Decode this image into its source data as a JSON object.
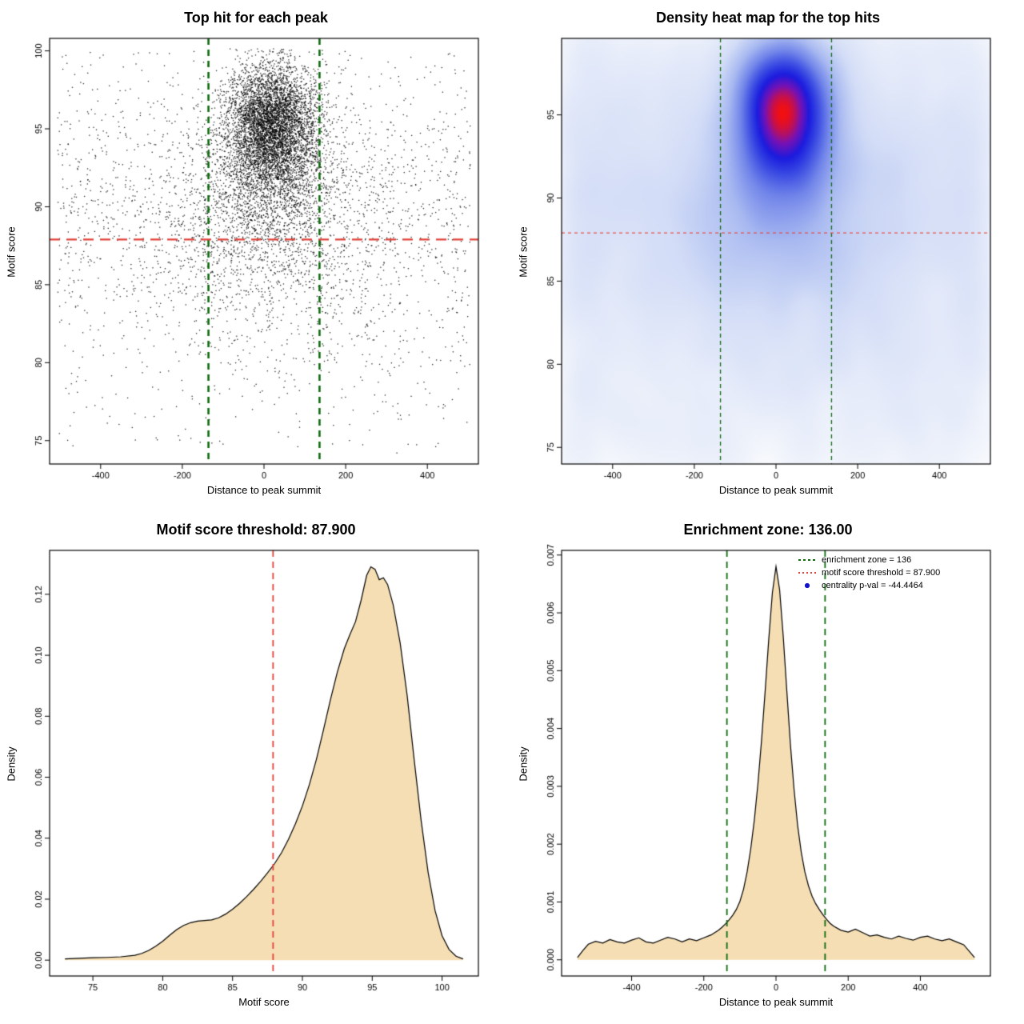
{
  "chart_data": [
    {
      "id": "top-hit-scatter",
      "type": "scatter",
      "title": "Top hit for each peak",
      "xlabel": "Distance to peak summit",
      "ylabel": "Motif score",
      "xlim": [
        -525,
        525
      ],
      "ylim": [
        73.5,
        100.8
      ],
      "xticks": [
        -400,
        -200,
        0,
        200,
        400
      ],
      "xtick_labels": [
        "-400",
        "-200",
        "0",
        "200",
        "400"
      ],
      "yticks": [
        75,
        80,
        85,
        90,
        95,
        100
      ],
      "ytick_labels": [
        "75",
        "80",
        "85",
        "90",
        "95",
        "100"
      ],
      "grid": false,
      "point_color": "#000000",
      "point_size": 1.3,
      "vlines": [
        {
          "x": -136,
          "color": "#0e6b0e",
          "dash": [
            8,
            6
          ],
          "width": 2.6
        },
        {
          "x": 136,
          "color": "#0e6b0e",
          "dash": [
            8,
            6
          ],
          "width": 2.6
        }
      ],
      "hlines": [
        {
          "y": 87.9,
          "color": "#e0433b",
          "dash": [
            13,
            8
          ],
          "width": 2.2
        }
      ],
      "points_spec": {
        "seed": 1337,
        "x_clip": [
          -505,
          505
        ],
        "y_clip": [
          73.8,
          100.2
        ],
        "clusters": [
          {
            "type": "gauss",
            "n": 5200,
            "x_mean": 20,
            "x_sd": 55,
            "y_mean": 95.2,
            "y_sd": 2.0
          },
          {
            "type": "gauss",
            "n": 1600,
            "x_mean": 10,
            "x_sd": 95,
            "y_mean": 91.2,
            "y_sd": 2.6
          },
          {
            "type": "gauss",
            "n": 900,
            "x_mean": 0,
            "x_sd": 170,
            "y_mean": 87.5,
            "y_sd": 3.2
          },
          {
            "type": "uniform_x_gauss_y",
            "n": 1500,
            "x_min": -505,
            "x_max": 505,
            "y_mean": 89.5,
            "y_sd": 5.2
          },
          {
            "type": "uniform",
            "n": 500,
            "x_min": -505,
            "x_max": 505,
            "y_min": 74.5,
            "y_max": 100
          }
        ]
      }
    },
    {
      "id": "density-heatmap",
      "type": "heatmap",
      "title": "Density heat map for the top hits",
      "xlabel": "Distance to peak summit",
      "ylabel": "Motif score",
      "xlim": [
        -525,
        525
      ],
      "ylim": [
        74,
        99.6
      ],
      "xticks": [
        -400,
        -200,
        0,
        200,
        400
      ],
      "xtick_labels": [
        "-400",
        "-200",
        "0",
        "200",
        "400"
      ],
      "yticks": [
        75,
        80,
        85,
        90,
        95
      ],
      "ytick_labels": [
        "75",
        "80",
        "85",
        "90",
        "95"
      ],
      "points_source": "top-hit-scatter",
      "kde": {
        "grid_nx": 150,
        "grid_ny": 150,
        "sigma_bins_x": 4.0,
        "sigma_bins_y": 6.4,
        "intensity_power": 0.3
      },
      "colormap": [
        [
          0.0,
          "#ffffff"
        ],
        [
          0.15,
          "#eef2fb"
        ],
        [
          0.35,
          "#d3ddf7"
        ],
        [
          0.52,
          "#a9baf1"
        ],
        [
          0.66,
          "#7286ea"
        ],
        [
          0.78,
          "#3747e2"
        ],
        [
          0.86,
          "#1b1bdf"
        ],
        [
          0.93,
          "#7712b4"
        ],
        [
          1.0,
          "#f40f0f"
        ]
      ],
      "vlines": [
        {
          "x": -136,
          "color": "#0e6b0e",
          "dash": [
            5,
            4
          ],
          "width": 1.3
        },
        {
          "x": 136,
          "color": "#0e6b0e",
          "dash": [
            5,
            4
          ],
          "width": 1.3
        }
      ],
      "hlines": [
        {
          "y": 87.9,
          "color": "#e0433b",
          "dash": [
            4,
            4
          ],
          "width": 1.1
        }
      ]
    },
    {
      "id": "motif-score-density",
      "type": "density",
      "title": "Motif score threshold: 87.900",
      "xlabel": "Motif score",
      "ylabel": "Density",
      "xlim": [
        71.9,
        102.6
      ],
      "ylim": [
        -0.0052,
        0.1344
      ],
      "xticks": [
        75,
        80,
        85,
        90,
        95,
        100
      ],
      "xtick_labels": [
        "75",
        "80",
        "85",
        "90",
        "95",
        "100"
      ],
      "yticks": [
        0,
        0.02,
        0.04,
        0.06,
        0.08,
        0.1,
        0.12
      ],
      "ytick_labels": [
        "0.00",
        "0.02",
        "0.04",
        "0.06",
        "0.08",
        "0.10",
        "0.12"
      ],
      "fill": "#f5deb3",
      "stroke": "#000000",
      "vlines": [
        {
          "x": 87.9,
          "color": "#e0433b",
          "dash": [
            8,
            6
          ],
          "width": 1.8
        }
      ],
      "curve": {
        "x": [
          73,
          74,
          75,
          76,
          77,
          78,
          78.5,
          79,
          79.5,
          80,
          80.5,
          81,
          81.5,
          82,
          82.5,
          83,
          83.5,
          84,
          84.5,
          85,
          85.5,
          86,
          86.5,
          87,
          87.5,
          88,
          88.5,
          89,
          89.5,
          90,
          90.5,
          91,
          91.5,
          92,
          92.5,
          93,
          93.4,
          93.8,
          94.2,
          94.6,
          94.9,
          95.2,
          95.5,
          95.8,
          96.1,
          96.5,
          97,
          97.5,
          98,
          98.5,
          99,
          99.5,
          100,
          100.5,
          101,
          101.5
        ],
        "y": [
          0.0004,
          0.0006,
          0.0008,
          0.0009,
          0.0011,
          0.0016,
          0.0022,
          0.0032,
          0.0046,
          0.0062,
          0.0082,
          0.01,
          0.0114,
          0.0123,
          0.0128,
          0.013,
          0.0132,
          0.0139,
          0.0151,
          0.0167,
          0.0186,
          0.0208,
          0.0232,
          0.0258,
          0.0286,
          0.0316,
          0.0352,
          0.0396,
          0.0447,
          0.0506,
          0.0576,
          0.0658,
          0.0754,
          0.0853,
          0.0945,
          0.1022,
          0.1068,
          0.111,
          0.118,
          0.1262,
          0.129,
          0.1282,
          0.1248,
          0.1254,
          0.1232,
          0.1165,
          0.104,
          0.0868,
          0.0658,
          0.0458,
          0.0288,
          0.0162,
          0.008,
          0.0035,
          0.0013,
          0.0004
        ]
      }
    },
    {
      "id": "distance-density",
      "type": "density",
      "title": "Enrichment zone: 136.00",
      "xlabel": "Distance to peak summit",
      "ylabel": "Density",
      "xlim": [
        -594,
        594
      ],
      "ylim": [
        -0.00028,
        0.00708
      ],
      "xticks": [
        -400,
        -200,
        0,
        200,
        400
      ],
      "xtick_labels": [
        "-400",
        "-200",
        "0",
        "200",
        "400"
      ],
      "yticks": [
        0,
        0.001,
        0.002,
        0.003,
        0.004,
        0.005,
        0.006,
        0.007
      ],
      "ytick_labels": [
        "0.000",
        "0.001",
        "0.002",
        "0.003",
        "0.004",
        "0.005",
        "0.006",
        "0.007"
      ],
      "fill": "#f5deb3",
      "stroke": "#000000",
      "vlines": [
        {
          "x": -136,
          "color": "#0e6b0e",
          "dash": [
            8,
            6
          ],
          "width": 1.8
        },
        {
          "x": 136,
          "color": "#0e6b0e",
          "dash": [
            8,
            6
          ],
          "width": 1.8
        }
      ],
      "legend": [
        {
          "label": "enrichment zone = 136",
          "marker": "green-dashed-line",
          "color": "#0e6b0e"
        },
        {
          "label": "motif score threshold = 87.900",
          "marker": "red-dotted-line",
          "color": "#e0433b"
        },
        {
          "label": "centrality p-val = -44.4464",
          "marker": "blue-dot",
          "color": "#1414c8"
        }
      ],
      "curve": {
        "x": [
          -550,
          -535,
          -520,
          -500,
          -480,
          -460,
          -440,
          -420,
          -400,
          -380,
          -360,
          -340,
          -320,
          -300,
          -280,
          -260,
          -240,
          -220,
          -200,
          -180,
          -160,
          -150,
          -140,
          -130,
          -120,
          -110,
          -100,
          -90,
          -80,
          -70,
          -60,
          -50,
          -40,
          -30,
          -20,
          -10,
          0,
          10,
          20,
          30,
          40,
          50,
          60,
          70,
          80,
          90,
          100,
          110,
          120,
          130,
          140,
          150,
          160,
          180,
          200,
          220,
          240,
          260,
          280,
          300,
          320,
          340,
          360,
          380,
          400,
          420,
          440,
          460,
          480,
          500,
          520,
          535,
          550
        ],
        "y": [
          4e-05,
          0.00016,
          0.00027,
          0.00032,
          0.00029,
          0.00035,
          0.00031,
          0.00029,
          0.00034,
          0.00038,
          0.00031,
          0.00029,
          0.00034,
          0.00039,
          0.00036,
          0.00031,
          0.00036,
          0.00033,
          0.00038,
          0.00043,
          0.00051,
          0.00056,
          0.00062,
          0.00069,
          0.00077,
          0.00087,
          0.00101,
          0.00122,
          0.00152,
          0.00192,
          0.00242,
          0.00305,
          0.0038,
          0.00465,
          0.00555,
          0.00635,
          0.0068,
          0.0064,
          0.0056,
          0.00465,
          0.00372,
          0.00295,
          0.00232,
          0.00186,
          0.00152,
          0.00128,
          0.0011,
          0.00097,
          0.00087,
          0.00078,
          0.0007,
          0.00063,
          0.00058,
          0.00051,
          0.00048,
          0.00053,
          0.00047,
          0.00041,
          0.00043,
          0.00039,
          0.00036,
          0.00041,
          0.00037,
          0.00034,
          0.00039,
          0.00041,
          0.00036,
          0.00033,
          0.00036,
          0.00031,
          0.00026,
          0.00015,
          4e-05
        ]
      }
    }
  ]
}
